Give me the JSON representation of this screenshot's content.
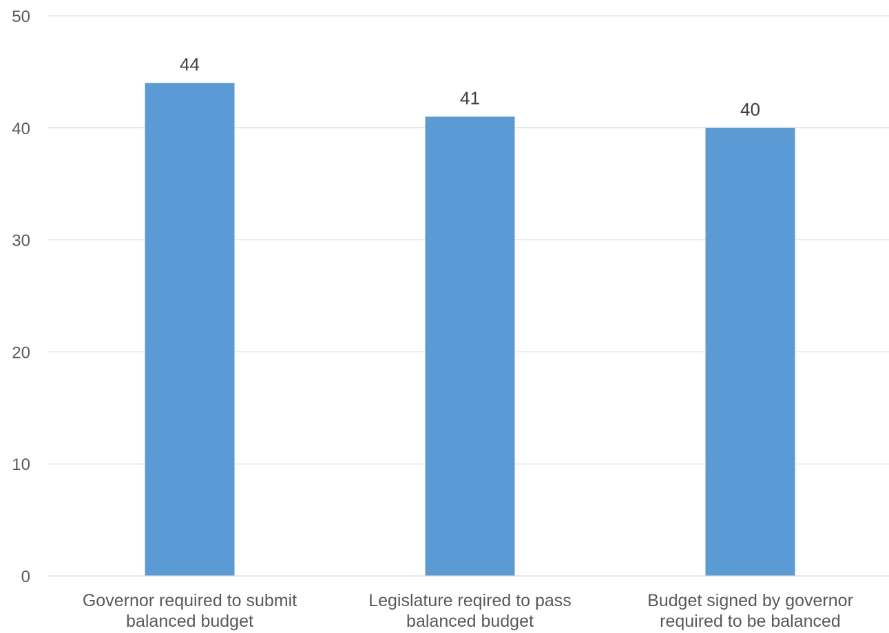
{
  "chart_data": {
    "type": "bar",
    "categories": [
      [
        "Governor required to submit",
        "balanced budget"
      ],
      [
        "Legislature reqired to pass",
        "balanced budget"
      ],
      [
        "Budget signed by governor",
        "required to be balanced"
      ]
    ],
    "values": [
      44,
      41,
      40
    ],
    "data_labels": [
      "44",
      "41",
      "40"
    ],
    "y_ticks": [
      "0",
      "10",
      "20",
      "30",
      "40",
      "50"
    ],
    "ylim": [
      0,
      50
    ],
    "grid": true,
    "legend": "none",
    "bar_color": "#5b9bd5"
  }
}
